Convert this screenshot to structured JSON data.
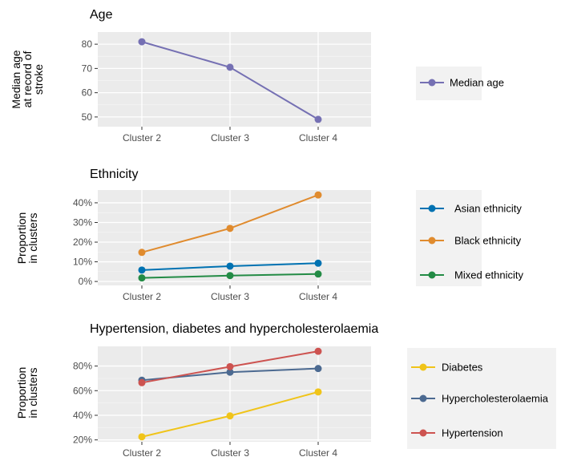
{
  "chart_data": [
    {
      "type": "line",
      "title": "Age",
      "categories": [
        "Cluster 2",
        "Cluster 3",
        "Cluster 4"
      ],
      "ylabel": [
        "Median age",
        "at record of",
        "stroke"
      ],
      "ylim": [
        46,
        85
      ],
      "yticks": [
        50,
        60,
        70,
        80
      ],
      "ytick_labels": [
        "50",
        "60",
        "70",
        "80"
      ],
      "grid": true,
      "legend_position": "right",
      "series": [
        {
          "name": "Median age",
          "color": "#7570b3",
          "values": [
            81,
            70.5,
            49
          ]
        }
      ]
    },
    {
      "type": "line",
      "title": "Ethnicity",
      "categories": [
        "Cluster 2",
        "Cluster 3",
        "Cluster 4"
      ],
      "ylabel": [
        "Proportion",
        "in clusters"
      ],
      "ylim": [
        -0.02,
        0.465
      ],
      "yticks": [
        0,
        0.1,
        0.2,
        0.3,
        0.4
      ],
      "ytick_labels": [
        "0%",
        "10%",
        "20%",
        "30%",
        "40%"
      ],
      "grid": true,
      "legend_position": "right",
      "series": [
        {
          "name": "Asian ethnicity",
          "color": "#0072b2",
          "values": [
            0.058,
            0.078,
            0.093
          ]
        },
        {
          "name": "Black ethnicity",
          "color": "#e08b2e",
          "values": [
            0.148,
            0.27,
            0.44
          ]
        },
        {
          "name": "Mixed ethnicity",
          "color": "#238b45",
          "values": [
            0.018,
            0.03,
            0.038
          ]
        }
      ]
    },
    {
      "type": "line",
      "title": "Hypertension, diabetes and hypercholesterolaemia",
      "categories": [
        "Cluster 2",
        "Cluster 3",
        "Cluster 4"
      ],
      "ylabel": [
        "Proportion",
        "in clusters"
      ],
      "ylim": [
        0.185,
        0.96
      ],
      "yticks": [
        0.2,
        0.4,
        0.6,
        0.8
      ],
      "ytick_labels": [
        "20%",
        "40%",
        "60%",
        "80%"
      ],
      "grid": true,
      "legend_position": "right",
      "series": [
        {
          "name": "Diabetes",
          "color": "#f0c419",
          "values": [
            0.225,
            0.395,
            0.59
          ]
        },
        {
          "name": "Hypercholesterolaemia",
          "color": "#4c6a91",
          "values": [
            0.685,
            0.75,
            0.78
          ]
        },
        {
          "name": "Hypertension",
          "color": "#cd5350",
          "values": [
            0.665,
            0.795,
            0.92
          ]
        }
      ]
    }
  ]
}
